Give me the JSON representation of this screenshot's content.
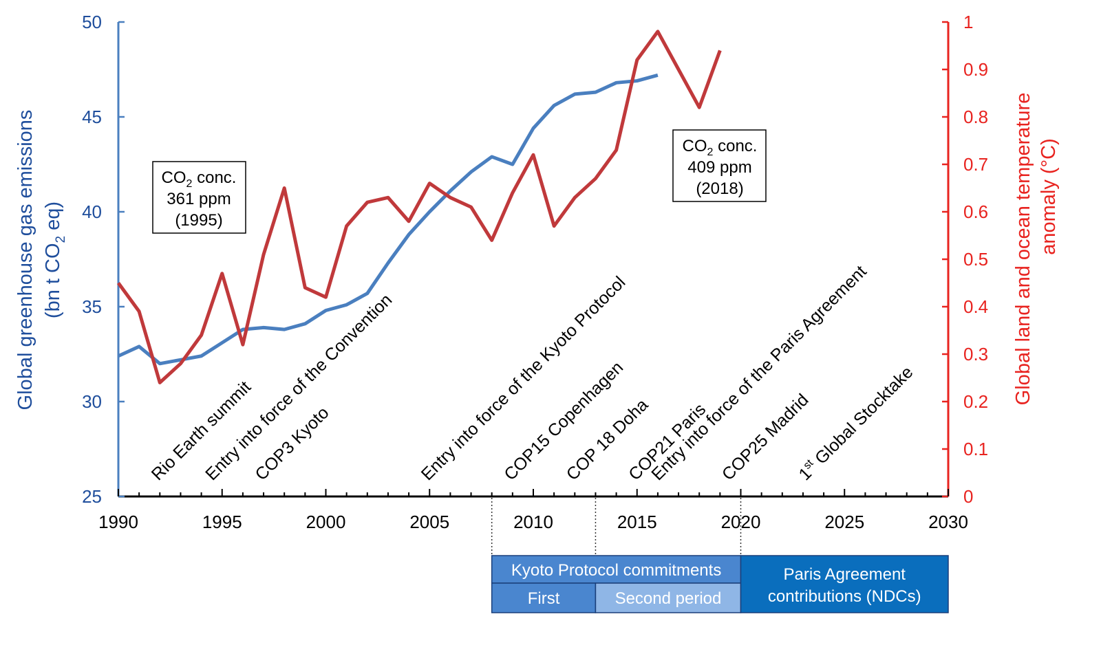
{
  "chart_data": {
    "type": "line",
    "x_range": [
      1990,
      2030
    ],
    "x_ticks": [
      1990,
      1995,
      2000,
      2005,
      2010,
      2015,
      2020,
      2025,
      2030
    ],
    "y_left": {
      "label_line1": "Global greenhouse gas emissions",
      "label_line2_prefix": "(bn t CO",
      "label_line2_sub": "2",
      "label_line2_suffix": " eq)",
      "range": [
        25,
        50
      ],
      "ticks": [
        25,
        30,
        35,
        40,
        45,
        50
      ],
      "color": "#1f4e9c"
    },
    "y_right": {
      "label_line1": "Global land and ocean temperature",
      "label_line2": "anomaly (°C)",
      "range": [
        0,
        1
      ],
      "ticks": [
        "0",
        "0.1",
        "0.2",
        "0.3",
        "0.4",
        "0.5",
        "0.6",
        "0.7",
        "0.8",
        "0.9",
        "1"
      ],
      "color": "#e8231f"
    },
    "series": [
      {
        "name": "Global greenhouse gas emissions",
        "axis": "left",
        "color": "#4a7fbf",
        "x": [
          1990,
          1991,
          1992,
          1993,
          1994,
          1995,
          1996,
          1997,
          1998,
          1999,
          2000,
          2001,
          2002,
          2003,
          2004,
          2005,
          2006,
          2007,
          2008,
          2009,
          2010,
          2011,
          2012,
          2013,
          2014,
          2015,
          2016
        ],
        "values": [
          32.4,
          32.9,
          32.0,
          32.2,
          32.4,
          33.1,
          33.8,
          33.9,
          33.8,
          34.1,
          34.8,
          35.1,
          35.7,
          37.3,
          38.8,
          40.0,
          41.1,
          42.1,
          42.9,
          42.5,
          44.4,
          45.6,
          46.2,
          46.3,
          46.8,
          46.9,
          47.2
        ]
      },
      {
        "name": "Global land and ocean temperature anomaly",
        "axis": "right",
        "color": "#c0393b",
        "x": [
          1990,
          1991,
          1992,
          1993,
          1994,
          1995,
          1996,
          1997,
          1998,
          1999,
          2000,
          2001,
          2002,
          2003,
          2004,
          2005,
          2006,
          2007,
          2008,
          2009,
          2010,
          2011,
          2012,
          2013,
          2014,
          2015,
          2016,
          2017,
          2018,
          2019
        ],
        "values": [
          0.45,
          0.39,
          0.24,
          0.28,
          0.34,
          0.47,
          0.32,
          0.51,
          0.65,
          0.44,
          0.42,
          0.57,
          0.62,
          0.63,
          0.58,
          0.66,
          0.63,
          0.61,
          0.54,
          0.64,
          0.72,
          0.57,
          0.63,
          0.67,
          0.73,
          0.92,
          0.98,
          0.9,
          0.82,
          0.94
        ]
      }
    ],
    "events": [
      {
        "year": 1992,
        "label": "Rio Earth summit"
      },
      {
        "year": 1994.6,
        "label": "Entry into force of the Convention"
      },
      {
        "year": 1997,
        "label": "COP3 Kyoto"
      },
      {
        "year": 2005,
        "label": "Entry into force of the Kyoto Protocol"
      },
      {
        "year": 2009,
        "label": "COP15 Copenhagen"
      },
      {
        "year": 2012,
        "label": "COP 18 Doha"
      },
      {
        "year": 2015,
        "label": "COP21 Paris"
      },
      {
        "year": 2016.1,
        "label": "Entry into force of the Paris Agreement"
      },
      {
        "year": 2019.5,
        "label": "COP25 Madrid"
      },
      {
        "year": 2023.2,
        "label_prefix": "1",
        "label_sup": "st",
        "label": " Global Stocktake"
      }
    ],
    "annotations": [
      {
        "line1_prefix": "CO",
        "line1_sub": "2",
        "line1_suffix": " conc.",
        "line2": "361 ppm",
        "line3": "(1995)"
      },
      {
        "line1_prefix": "CO",
        "line1_sub": "2",
        "line1_suffix": " conc.",
        "line2": "409 ppm",
        "line3": "(2018)"
      }
    ],
    "periods": {
      "kyoto_title": "Kyoto Protocol commitments",
      "first": "First",
      "second": "Second period",
      "paris_line1": "Paris Agreement",
      "paris_line2": "contributions (NDCs)",
      "kyoto_start": 2008,
      "first_end": 2013,
      "second_end": 2020,
      "paris_end": 2030
    },
    "colors": {
      "kyoto_title_fill": "#4a86cf",
      "first_fill": "#4a86cf",
      "second_fill": "#8fb6e6",
      "paris_fill": "#0a6ebd",
      "border": "#1a3f7a"
    }
  }
}
